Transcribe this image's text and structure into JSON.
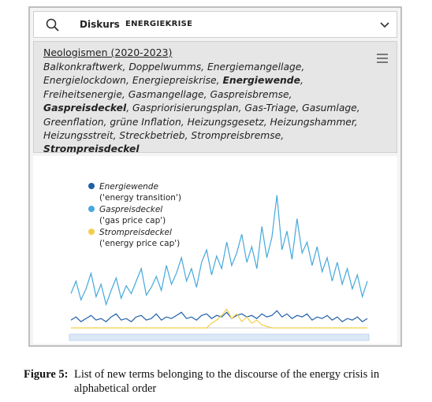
{
  "search": {
    "label": "Diskurs",
    "query": "ENERGIEKRISE"
  },
  "neologisms": {
    "title": "Neologismen (2020-2023)",
    "terms": [
      {
        "text": "Balkonkraftwerk",
        "bold": false
      },
      {
        "text": "Doppelwumms",
        "bold": false
      },
      {
        "text": "Energiemangellage",
        "bold": false
      },
      {
        "text": "Energielockdown",
        "bold": false
      },
      {
        "text": "Energiepreiskrise",
        "bold": false
      },
      {
        "text": "Energiewende",
        "bold": true
      },
      {
        "text": "Freiheitsenergie",
        "bold": false
      },
      {
        "text": "Gasmangellage",
        "bold": false
      },
      {
        "text": "Gaspreisbremse",
        "bold": false
      },
      {
        "text": "Gaspreisdeckel",
        "bold": true
      },
      {
        "text": "Gaspriorisierungsplan",
        "bold": false
      },
      {
        "text": "Gas-Triage",
        "bold": false
      },
      {
        "text": "Gasumlage",
        "bold": false
      },
      {
        "text": "Greenflation",
        "bold": false
      },
      {
        "text": "grüne Inflation",
        "bold": false
      },
      {
        "text": "Heizungsgesetz",
        "bold": false
      },
      {
        "text": "Heizungshammer",
        "bold": false
      },
      {
        "text": "Heizungsstreit",
        "bold": false
      },
      {
        "text": "Streckbetrieb",
        "bold": false
      },
      {
        "text": "Strompreisbremse",
        "bold": false
      },
      {
        "text": "Strompreisdeckel",
        "bold": true
      }
    ]
  },
  "chart_data": {
    "type": "line",
    "ylim": [
      0,
      100
    ],
    "series": [
      {
        "name": "Energiewende",
        "translation": "('energy transition')",
        "color": "#1f5fa8",
        "values": [
          5,
          7,
          4,
          6,
          8,
          5,
          6,
          4,
          7,
          9,
          5,
          6,
          4,
          7,
          8,
          5,
          6,
          9,
          5,
          7,
          6,
          8,
          10,
          6,
          7,
          5,
          8,
          9,
          6,
          8,
          7,
          10,
          6,
          8,
          9,
          7,
          8,
          6,
          9,
          7,
          8,
          11,
          7,
          9,
          6,
          8,
          7,
          9,
          5,
          7,
          6,
          8,
          5,
          7,
          4,
          6,
          5,
          7,
          4,
          6
        ]
      },
      {
        "name": "Gaspreisdeckel",
        "translation": "('gas price cap')",
        "color": "#45a8dc",
        "values": [
          22,
          30,
          18,
          25,
          35,
          20,
          28,
          15,
          24,
          32,
          19,
          27,
          22,
          30,
          38,
          21,
          26,
          33,
          24,
          40,
          28,
          35,
          45,
          30,
          38,
          26,
          42,
          50,
          34,
          46,
          38,
          55,
          40,
          48,
          60,
          42,
          52,
          38,
          65,
          45,
          58,
          85,
          50,
          62,
          44,
          70,
          48,
          55,
          40,
          52,
          36,
          45,
          30,
          42,
          28,
          38,
          25,
          34,
          20,
          30
        ]
      },
      {
        "name": "Strompreisdeckel",
        "translation": "('energy price cap')",
        "color": "#f2cf4a",
        "values": [
          0,
          0,
          0,
          0,
          0,
          0,
          0,
          0,
          0,
          0,
          0,
          0,
          0,
          0,
          0,
          0,
          0,
          0,
          0,
          0,
          0,
          0,
          0,
          0,
          0,
          0,
          0,
          0,
          3,
          5,
          8,
          12,
          6,
          9,
          4,
          7,
          3,
          5,
          2,
          1,
          0,
          0,
          0,
          0,
          0,
          0,
          0,
          0,
          0,
          0,
          0,
          0,
          0,
          0,
          0,
          0,
          0,
          0,
          0,
          0
        ]
      }
    ]
  },
  "caption": {
    "label": "Figure 5:",
    "text": "List of new terms belonging to the discourse of the energy crisis in alphabetical order"
  }
}
